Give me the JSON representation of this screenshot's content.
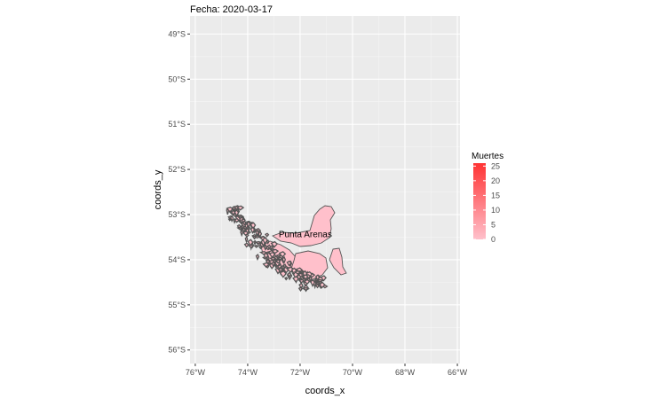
{
  "chart_data": {
    "type": "map",
    "title": "Fecha: 2020-03-17",
    "xlabel": "coords_x",
    "ylabel": "coords_y",
    "x_ticks": [
      {
        "value": -76,
        "label": "76°W"
      },
      {
        "value": -74,
        "label": "74°W"
      },
      {
        "value": -72,
        "label": "72°W"
      },
      {
        "value": -70,
        "label": "70°W"
      },
      {
        "value": -68,
        "label": "68°W"
      },
      {
        "value": -66,
        "label": "66°W"
      }
    ],
    "y_ticks": [
      {
        "value": -49,
        "label": "49°S"
      },
      {
        "value": -50,
        "label": "50°S"
      },
      {
        "value": -51,
        "label": "51°S"
      },
      {
        "value": -52,
        "label": "52°S"
      },
      {
        "value": -53,
        "label": "53°S"
      },
      {
        "value": -54,
        "label": "54°S"
      },
      {
        "value": -55,
        "label": "55°S"
      },
      {
        "value": -56,
        "label": "56°S"
      }
    ],
    "xlim": [
      -76.2,
      -65.9
    ],
    "ylim": [
      -56.3,
      -48.6
    ],
    "grid": true,
    "legend": {
      "title": "Muertes",
      "position": "right",
      "min": 0,
      "max": 26,
      "low_color": "#ffc0cb",
      "high_color": "#ff3333",
      "breaks": [
        0,
        5,
        10,
        15,
        20,
        25
      ]
    },
    "regions": [
      {
        "label": "Punta Arenas",
        "value": 0,
        "label_lon": -71.8,
        "label_lat": -53.5,
        "fill": "#ffc0cb",
        "outline": "#555555"
      }
    ]
  }
}
